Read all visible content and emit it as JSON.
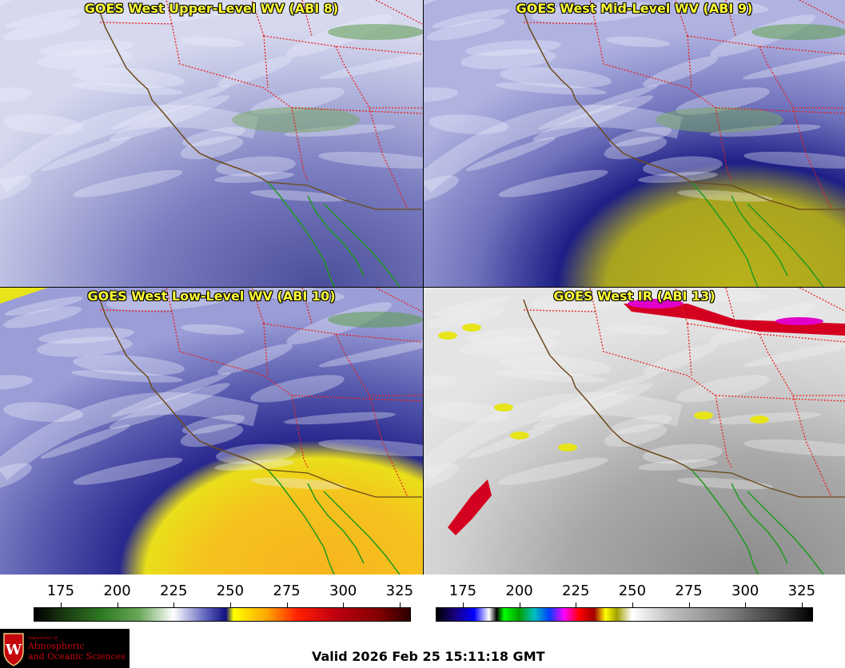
{
  "panels": [
    {
      "title": "GOES West Upper-Level WV (ABI 8)",
      "scheme": "upper"
    },
    {
      "title": "GOES West Mid-Level WV (ABI 9)",
      "scheme": "mid"
    },
    {
      "title": "GOES West Low-Level WV (ABI 10)",
      "scheme": "low"
    },
    {
      "title": "GOES West IR (ABI 13)",
      "scheme": "ir"
    }
  ],
  "colorbars": [
    {
      "name": "wv",
      "ticks": [
        "175",
        "200",
        "225",
        "250",
        "275",
        "300",
        "325"
      ]
    },
    {
      "name": "ir",
      "ticks": [
        "175",
        "200",
        "225",
        "250",
        "275",
        "300",
        "325"
      ]
    }
  ],
  "logo": {
    "line1": "Department of",
    "line2": "Atmospheric",
    "line3": "and Oceanic Sciences",
    "crest_letter": "W"
  },
  "valid_time": "Valid 2026 Feb 25 15:11:18 GMT",
  "colors": {
    "title_text": "#ffff33",
    "state_border": "#e8201c",
    "coastline": "#6b4a1a",
    "mexico_coast": "#1f9a1f"
  }
}
